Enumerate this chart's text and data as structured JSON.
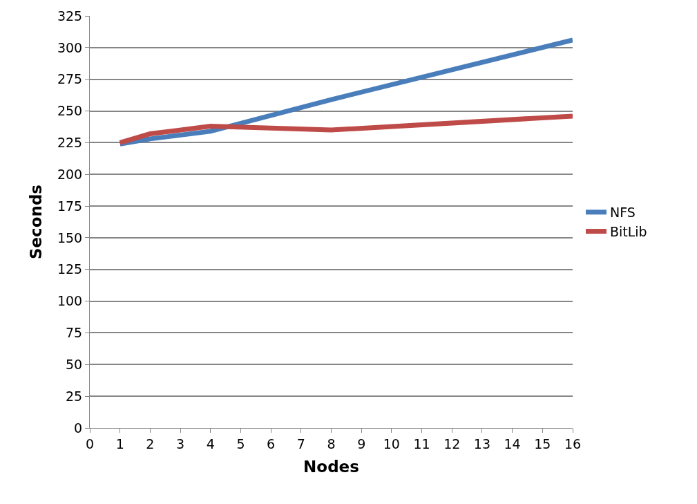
{
  "chart_data": {
    "type": "line",
    "xlabel": "Nodes",
    "ylabel": "Seconds",
    "x": [
      1,
      2,
      4,
      8,
      16
    ],
    "series": [
      {
        "name": "NFS",
        "color": "#4a7ebb",
        "values": [
          224,
          228,
          234,
          259,
          306
        ]
      },
      {
        "name": "BitLib",
        "color": "#be4b48",
        "values": [
          225,
          232,
          238,
          235,
          246
        ]
      }
    ],
    "xlim": [
      0,
      16
    ],
    "xticks": [
      0,
      1,
      2,
      3,
      4,
      5,
      6,
      7,
      8,
      9,
      10,
      11,
      12,
      13,
      14,
      15,
      16
    ],
    "ylim": [
      0,
      325
    ],
    "yticks": [
      0,
      25,
      50,
      75,
      100,
      125,
      150,
      175,
      200,
      225,
      250,
      275,
      300,
      325
    ],
    "grid": "y",
    "legend": "right",
    "marker": "none",
    "line_style": "solid"
  }
}
